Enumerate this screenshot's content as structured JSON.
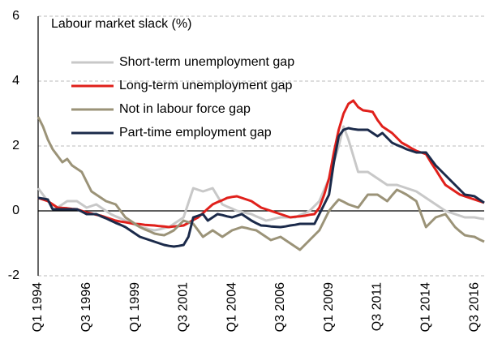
{
  "chart_data": {
    "type": "line",
    "title": "Labour market slack (%)",
    "categories": [
      "Q1 1994",
      null,
      null,
      null,
      null,
      null,
      null,
      null,
      null,
      null,
      "Q3 1996",
      null,
      null,
      null,
      null,
      null,
      null,
      null,
      null,
      null,
      "Q1 1999",
      null,
      null,
      null,
      null,
      null,
      null,
      null,
      null,
      null,
      "Q3 2001",
      null,
      null,
      null,
      null,
      null,
      null,
      null,
      null,
      null,
      "Q1 2004",
      null,
      null,
      null,
      null,
      null,
      null,
      null,
      null,
      null,
      "Q3 2006",
      null,
      null,
      null,
      null,
      null,
      null,
      null,
      null,
      null,
      "Q1 2009",
      null,
      null,
      null,
      null,
      null,
      null,
      null,
      null,
      null,
      "Q3 2011",
      null,
      null,
      null,
      null,
      null,
      null,
      null,
      null,
      null,
      "Q1 2014",
      null,
      null,
      null,
      null,
      null,
      null,
      null,
      null,
      null,
      "Q3 2016",
      null,
      null
    ],
    "series": [
      {
        "name": "Short-term unemployment gap",
        "color": "#c8c8c8",
        "values": [
          0.7,
          0.5,
          0.3,
          0.2,
          0.1,
          0.2,
          0.3,
          0.3,
          0.3,
          0.2,
          0.1,
          0.15,
          0.2,
          0.1,
          0,
          -0.1,
          -0.17,
          -0.23,
          -0.3,
          -0.37,
          -0.43,
          -0.5,
          -0.53,
          -0.57,
          -0.6,
          -0.57,
          -0.53,
          -0.5,
          -0.4,
          -0.3,
          -0.2,
          0.25,
          0.7,
          0.65,
          0.6,
          0.65,
          0.7,
          0.45,
          0.2,
          0.13,
          0.07,
          0,
          -0.03,
          -0.07,
          -0.1,
          -0.17,
          -0.23,
          -0.3,
          -0.27,
          -0.23,
          -0.2,
          -0.2,
          -0.2,
          -0.2,
          -0.13,
          -0.07,
          0,
          0.15,
          0.3,
          0.65,
          1.0,
          1.5,
          2.0,
          2.6,
          2.2,
          1.7,
          1.2,
          1.2,
          1.2,
          1.1,
          1.0,
          0.9,
          0.8,
          0.8,
          0.8,
          0.75,
          0.7,
          0.65,
          0.6,
          0.5,
          0.4,
          0.3,
          0.2,
          0.1,
          0,
          -0.05,
          -0.1,
          -0.15,
          -0.2,
          -0.2,
          -0.2,
          -0.23,
          -0.25
        ]
      },
      {
        "name": "Long-term unemployment gap",
        "color": "#e0201b",
        "values": [
          0.4,
          0.35,
          0.3,
          0.2,
          0.1,
          0.09,
          0.08,
          0.06,
          0.05,
          0,
          -0.05,
          -0.08,
          -0.12,
          -0.15,
          -0.2,
          -0.25,
          -0.3,
          -0.33,
          -0.35,
          -0.38,
          -0.4,
          -0.41,
          -0.43,
          -0.44,
          -0.45,
          -0.47,
          -0.48,
          -0.5,
          -0.48,
          -0.47,
          -0.45,
          -0.37,
          -0.28,
          -0.2,
          -0.07,
          0.07,
          0.2,
          0.27,
          0.33,
          0.4,
          0.43,
          0.45,
          0.4,
          0.35,
          0.3,
          0.2,
          0.1,
          0.05,
          0,
          -0.05,
          -0.1,
          -0.15,
          -0.2,
          -0.18,
          -0.17,
          -0.15,
          -0.12,
          -0.1,
          0.1,
          0.5,
          1.0,
          1.8,
          2.5,
          3.0,
          3.3,
          3.4,
          3.2,
          3.1,
          3.08,
          3.05,
          2.8,
          2.6,
          2.5,
          2.4,
          2.25,
          2.1,
          2.02,
          1.93,
          1.85,
          1.8,
          1.75,
          1.5,
          1.27,
          1.03,
          0.8,
          0.7,
          0.6,
          0.5,
          0.45,
          0.4,
          0.35,
          0.3,
          0.25
        ]
      },
      {
        "name": "Not in labour force gap",
        "color": "#9b9378",
        "values": [
          2.9,
          2.6,
          2.2,
          1.9,
          1.7,
          1.5,
          1.6,
          1.4,
          1.3,
          1.2,
          0.9,
          0.6,
          0.5,
          0.4,
          0.3,
          0.25,
          0.2,
          0,
          -0.2,
          -0.3,
          -0.4,
          -0.5,
          -0.57,
          -0.63,
          -0.7,
          -0.73,
          -0.75,
          -0.68,
          -0.6,
          -0.45,
          -0.3,
          -0.35,
          -0.4,
          -0.6,
          -0.8,
          -0.7,
          -0.6,
          -0.7,
          -0.8,
          -0.7,
          -0.6,
          -0.55,
          -0.5,
          -0.53,
          -0.57,
          -0.6,
          -0.7,
          -0.8,
          -0.9,
          -0.85,
          -0.8,
          -0.9,
          -1.0,
          -1.1,
          -1.2,
          -1.05,
          -0.9,
          -0.75,
          -0.6,
          -0.3,
          0,
          0.18,
          0.35,
          0.28,
          0.2,
          0.15,
          0.1,
          0.3,
          0.5,
          0.5,
          0.5,
          0.4,
          0.3,
          0.48,
          0.65,
          0.58,
          0.5,
          0.4,
          0.3,
          -0.1,
          -0.5,
          -0.35,
          -0.2,
          -0.15,
          -0.1,
          -0.3,
          -0.5,
          -0.63,
          -0.75,
          -0.78,
          -0.8,
          -0.88,
          -0.95
        ]
      },
      {
        "name": "Part-time employment gap",
        "color": "#1b2a4a",
        "values": [
          0.4,
          0.38,
          0.35,
          0.05,
          0.05,
          0.05,
          0.05,
          0.05,
          0.05,
          -0.02,
          -0.1,
          -0.1,
          -0.1,
          -0.17,
          -0.23,
          -0.3,
          -0.37,
          -0.43,
          -0.5,
          -0.6,
          -0.7,
          -0.8,
          -0.85,
          -0.9,
          -0.95,
          -1.0,
          -1.05,
          -1.08,
          -1.1,
          -1.08,
          -1.05,
          -0.8,
          -0.2,
          -0.15,
          -0.1,
          -0.3,
          -0.2,
          -0.1,
          -0.13,
          -0.17,
          -0.2,
          -0.15,
          -0.1,
          -0.2,
          -0.3,
          -0.38,
          -0.45,
          -0.46,
          -0.48,
          -0.49,
          -0.5,
          -0.48,
          -0.45,
          -0.43,
          -0.4,
          -0.4,
          -0.4,
          -0.4,
          -0.1,
          0.2,
          0.5,
          1.5,
          2.3,
          2.5,
          2.55,
          2.52,
          2.5,
          2.5,
          2.5,
          2.4,
          2.3,
          2.4,
          2.25,
          2.1,
          2.03,
          1.97,
          1.9,
          1.85,
          1.8,
          1.8,
          1.8,
          1.6,
          1.4,
          1.25,
          1.1,
          0.95,
          0.8,
          0.65,
          0.5,
          0.48,
          0.45,
          0.35,
          0.25
        ]
      }
    ],
    "ylim": [
      -2,
      6
    ],
    "yticks": [
      -2,
      0,
      2,
      4,
      6
    ],
    "grid": true
  }
}
